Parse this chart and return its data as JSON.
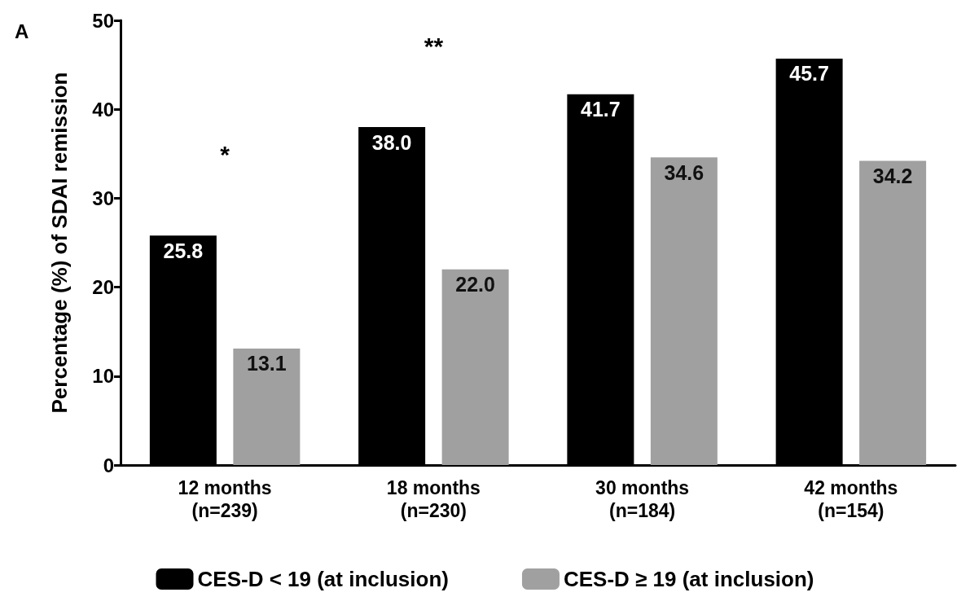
{
  "chart_data": {
    "type": "bar",
    "ylabel": "Percentage (%) of SDAI remission",
    "categories": [
      "12 months\n(n=239)",
      "18 months\n(n=230)",
      "30 months\n(n=184)",
      "42 months\n(n=154)"
    ],
    "series": [
      {
        "name": "CES-D < 19 (at inclusion)",
        "color": "#000000",
        "values": [
          25.8,
          38.0,
          41.7,
          45.7
        ],
        "value_labels": [
          "25.8",
          "38.0",
          "41.7",
          "45.7"
        ]
      },
      {
        "name": "CES-D ≥ 19 (at inclusion)",
        "color": "#a0a0a0",
        "values": [
          13.1,
          22.0,
          34.6,
          34.2
        ],
        "value_labels": [
          "13.1",
          "22.0",
          "34.6",
          "34.2"
        ]
      }
    ],
    "ylim": [
      0,
      50
    ],
    "yticks": [
      0,
      10,
      20,
      30,
      40,
      50
    ],
    "grid": false,
    "legend": "bottom",
    "annotations": [
      "A",
      "*",
      "**"
    ]
  }
}
